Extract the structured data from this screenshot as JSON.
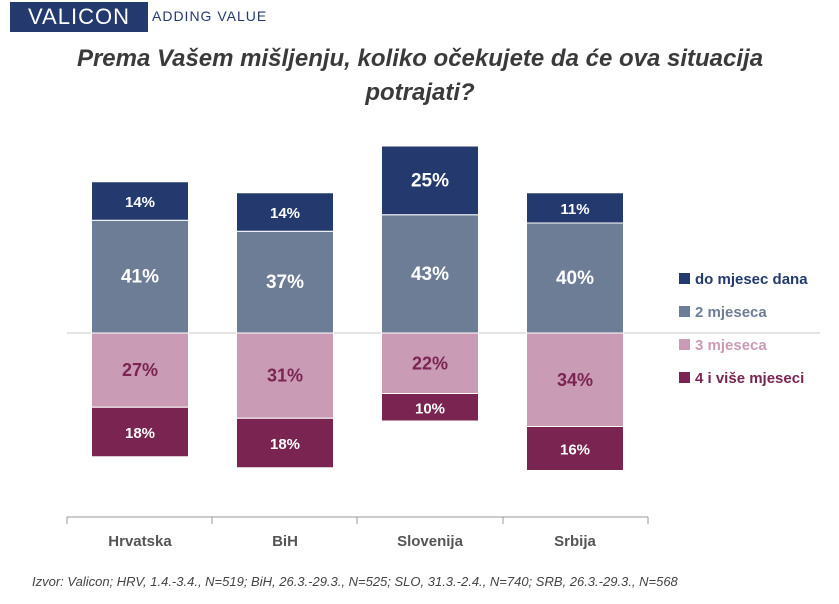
{
  "header": {
    "logo_text": "VALICON",
    "tagline": "ADDING VALUE"
  },
  "colors": {
    "brand": "#243a6f"
  },
  "chart_data": {
    "type": "bar",
    "subtype": "diverging-stacked",
    "title": "Prema Vašem mišljenju, koliko očekujete da će ova situacija potrajati?",
    "categories": [
      "Hrvatska",
      "BiH",
      "Slovenija",
      "Srbija"
    ],
    "series": [
      {
        "name": "do mjesec dana",
        "color": "#243a6f",
        "direction": "up",
        "values": [
          14,
          14,
          25,
          11
        ],
        "labels": [
          "14%",
          "14%",
          "25%",
          "11%"
        ]
      },
      {
        "name": "2 mjeseca",
        "color": "#6e7d96",
        "direction": "up",
        "values": [
          41,
          37,
          43,
          40
        ],
        "labels": [
          "41%",
          "37%",
          "43%",
          "40%"
        ]
      },
      {
        "name": "3 mjeseca",
        "color": "#c99bb5",
        "direction": "down",
        "values": [
          27,
          31,
          22,
          34
        ],
        "labels": [
          "27%",
          "31%",
          "22%",
          "34%"
        ]
      },
      {
        "name": "4 i više mjeseci",
        "color": "#7a2451",
        "direction": "down",
        "values": [
          18,
          18,
          10,
          16
        ],
        "labels": [
          "18%",
          "18%",
          "10%",
          "16%"
        ]
      }
    ],
    "legend_position": "right",
    "grid": false
  },
  "footer": {
    "source": "Izvor: Valicon; HRV, 1.4.-3.4., N=519; BiH, 26.3.-29.3., N=525; SLO, 31.3.-2.4., N=740; SRB, 26.3.-29.3., N=568"
  }
}
